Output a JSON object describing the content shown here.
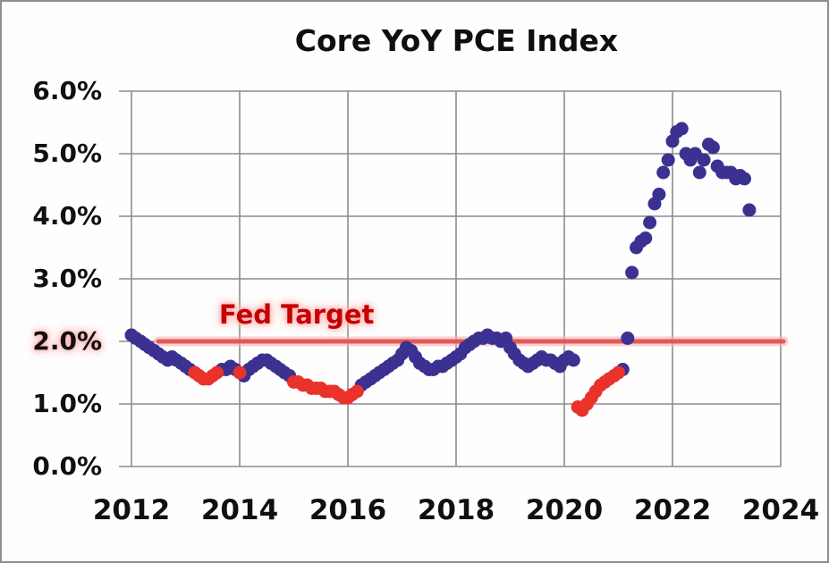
{
  "chart_data": {
    "type": "scatter",
    "title": "Core YoY PCE Index",
    "xlabel": "",
    "ylabel": "",
    "xlim": [
      2012,
      2024
    ],
    "ylim": [
      0,
      6
    ],
    "grid": true,
    "legend": "none",
    "x_ticks": [
      "2012",
      "2014",
      "2016",
      "2018",
      "2020",
      "2022",
      "2024"
    ],
    "y_ticks": [
      "0.0%",
      "1.0%",
      "2.0%",
      "3.0%",
      "4.0%",
      "5.0%",
      "6.0%"
    ],
    "highlight_y_tick": "2.0%",
    "reference_line": {
      "label": "Fed Target",
      "value": 2.0,
      "x_start": 2012.5,
      "x_end": 2024.05
    },
    "colors": {
      "grid": "#8c8c8c",
      "purple_marker": "#3b3191",
      "red_marker": "#e8322a",
      "ref_line": "#e05252",
      "ref_line_glow": "#f5b3b3",
      "annotation_red": "#c40000"
    },
    "series": [
      {
        "name": "core-pce-purple",
        "color": "#3b3191",
        "points": [
          [
            2012.0,
            2.1
          ],
          [
            2012.08,
            2.05
          ],
          [
            2012.17,
            2.0
          ],
          [
            2012.25,
            1.95
          ],
          [
            2012.33,
            1.9
          ],
          [
            2012.42,
            1.85
          ],
          [
            2012.5,
            1.8
          ],
          [
            2012.58,
            1.75
          ],
          [
            2012.67,
            1.7
          ],
          [
            2012.75,
            1.75
          ],
          [
            2012.83,
            1.7
          ],
          [
            2012.92,
            1.65
          ],
          [
            2013.0,
            1.6
          ],
          [
            2013.08,
            1.55
          ],
          [
            2013.67,
            1.55
          ],
          [
            2013.75,
            1.55
          ],
          [
            2013.83,
            1.6
          ],
          [
            2013.92,
            1.55
          ],
          [
            2014.08,
            1.45
          ],
          [
            2014.17,
            1.55
          ],
          [
            2014.25,
            1.6
          ],
          [
            2014.33,
            1.65
          ],
          [
            2014.42,
            1.7
          ],
          [
            2014.5,
            1.7
          ],
          [
            2014.58,
            1.65
          ],
          [
            2014.67,
            1.6
          ],
          [
            2014.75,
            1.55
          ],
          [
            2014.83,
            1.5
          ],
          [
            2014.92,
            1.45
          ],
          [
            2016.25,
            1.3
          ],
          [
            2016.33,
            1.35
          ],
          [
            2016.42,
            1.4
          ],
          [
            2016.5,
            1.45
          ],
          [
            2016.58,
            1.5
          ],
          [
            2016.67,
            1.55
          ],
          [
            2016.75,
            1.6
          ],
          [
            2016.83,
            1.65
          ],
          [
            2016.92,
            1.7
          ],
          [
            2017.0,
            1.8
          ],
          [
            2017.08,
            1.9
          ],
          [
            2017.17,
            1.85
          ],
          [
            2017.25,
            1.75
          ],
          [
            2017.33,
            1.65
          ],
          [
            2017.42,
            1.6
          ],
          [
            2017.5,
            1.55
          ],
          [
            2017.58,
            1.55
          ],
          [
            2017.67,
            1.6
          ],
          [
            2017.75,
            1.6
          ],
          [
            2017.83,
            1.65
          ],
          [
            2017.92,
            1.7
          ],
          [
            2018.0,
            1.75
          ],
          [
            2018.08,
            1.8
          ],
          [
            2018.17,
            1.9
          ],
          [
            2018.25,
            1.95
          ],
          [
            2018.33,
            2.0
          ],
          [
            2018.42,
            2.05
          ],
          [
            2018.5,
            2.05
          ],
          [
            2018.58,
            2.1
          ],
          [
            2018.67,
            2.05
          ],
          [
            2018.75,
            2.05
          ],
          [
            2018.83,
            2.0
          ],
          [
            2018.92,
            2.05
          ],
          [
            2019.0,
            1.9
          ],
          [
            2019.08,
            1.8
          ],
          [
            2019.17,
            1.7
          ],
          [
            2019.25,
            1.65
          ],
          [
            2019.33,
            1.6
          ],
          [
            2019.42,
            1.65
          ],
          [
            2019.5,
            1.7
          ],
          [
            2019.58,
            1.75
          ],
          [
            2019.67,
            1.7
          ],
          [
            2019.75,
            1.7
          ],
          [
            2019.83,
            1.65
          ],
          [
            2019.92,
            1.6
          ],
          [
            2020.0,
            1.7
          ],
          [
            2020.08,
            1.75
          ],
          [
            2020.17,
            1.7
          ],
          [
            2021.08,
            1.55
          ],
          [
            2021.17,
            2.05
          ],
          [
            2021.25,
            3.1
          ],
          [
            2021.33,
            3.5
          ],
          [
            2021.42,
            3.6
          ],
          [
            2021.5,
            3.65
          ],
          [
            2021.58,
            3.9
          ],
          [
            2021.67,
            4.2
          ],
          [
            2021.75,
            4.35
          ],
          [
            2021.83,
            4.7
          ],
          [
            2021.92,
            4.9
          ],
          [
            2022.0,
            5.2
          ],
          [
            2022.08,
            5.35
          ],
          [
            2022.17,
            5.4
          ],
          [
            2022.25,
            5.0
          ],
          [
            2022.33,
            4.9
          ],
          [
            2022.42,
            5.0
          ],
          [
            2022.5,
            4.7
          ],
          [
            2022.58,
            4.9
          ],
          [
            2022.67,
            5.15
          ],
          [
            2022.75,
            5.1
          ],
          [
            2022.83,
            4.8
          ],
          [
            2022.92,
            4.7
          ],
          [
            2023.0,
            4.7
          ],
          [
            2023.08,
            4.7
          ],
          [
            2023.17,
            4.6
          ],
          [
            2023.25,
            4.65
          ],
          [
            2023.33,
            4.6
          ],
          [
            2023.42,
            4.1
          ]
        ]
      },
      {
        "name": "core-pce-red-highlight",
        "color": "#e8322a",
        "points": [
          [
            2013.17,
            1.5
          ],
          [
            2013.25,
            1.45
          ],
          [
            2013.33,
            1.4
          ],
          [
            2013.42,
            1.4
          ],
          [
            2013.5,
            1.45
          ],
          [
            2013.58,
            1.5
          ],
          [
            2014.0,
            1.5
          ],
          [
            2015.0,
            1.35
          ],
          [
            2015.08,
            1.35
          ],
          [
            2015.17,
            1.3
          ],
          [
            2015.25,
            1.3
          ],
          [
            2015.33,
            1.25
          ],
          [
            2015.42,
            1.25
          ],
          [
            2015.5,
            1.25
          ],
          [
            2015.58,
            1.2
          ],
          [
            2015.67,
            1.2
          ],
          [
            2015.75,
            1.2
          ],
          [
            2015.83,
            1.15
          ],
          [
            2015.92,
            1.1
          ],
          [
            2016.0,
            1.1
          ],
          [
            2016.08,
            1.15
          ],
          [
            2016.17,
            1.2
          ],
          [
            2020.25,
            0.95
          ],
          [
            2020.33,
            0.9
          ],
          [
            2020.42,
            1.0
          ],
          [
            2020.5,
            1.1
          ],
          [
            2020.58,
            1.2
          ],
          [
            2020.67,
            1.3
          ],
          [
            2020.75,
            1.35
          ],
          [
            2020.83,
            1.4
          ],
          [
            2020.92,
            1.45
          ],
          [
            2021.0,
            1.5
          ]
        ]
      }
    ]
  }
}
